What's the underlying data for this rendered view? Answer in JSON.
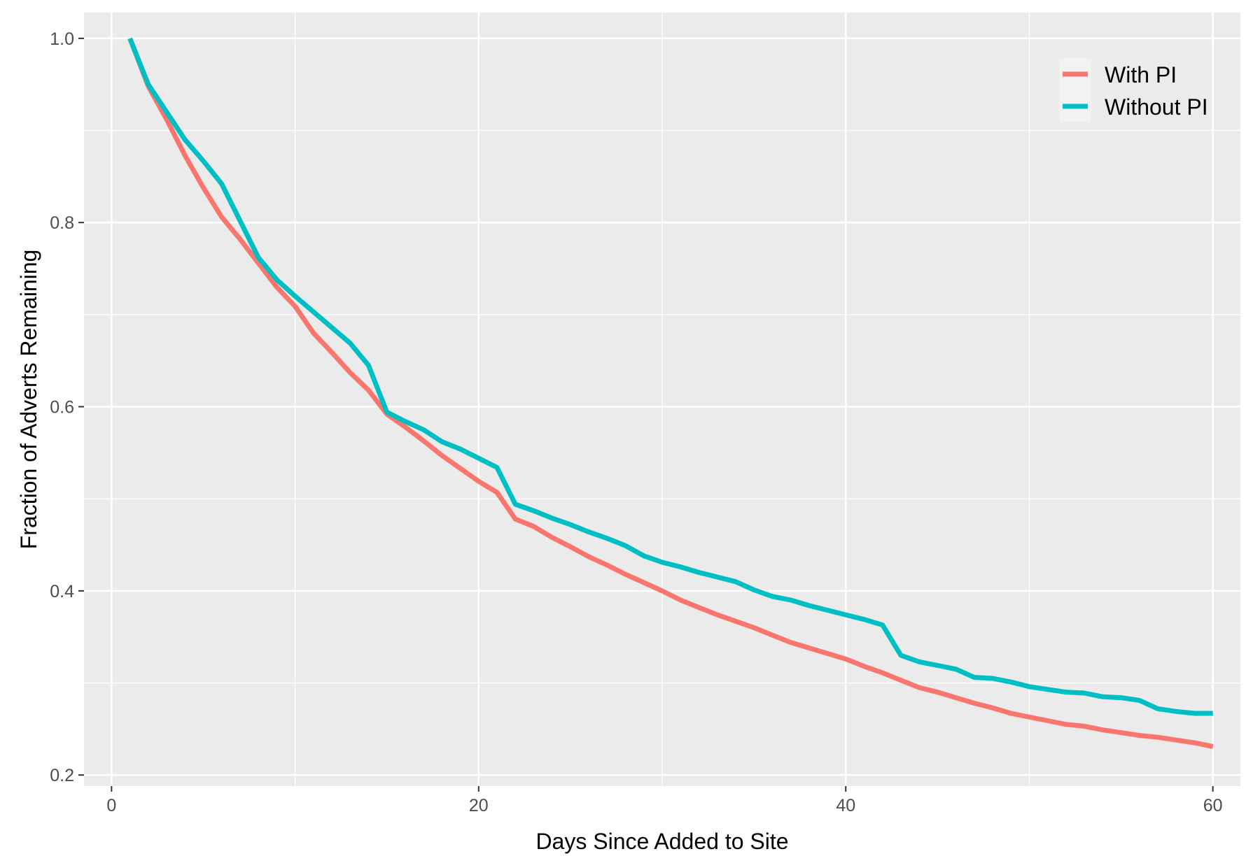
{
  "chart_data": {
    "type": "line",
    "title": "",
    "xlabel": "Days Since Added to Site",
    "ylabel": "Fraction of Adverts Remaining",
    "xlim": [
      -1.5,
      61.5
    ],
    "ylim": [
      0.188,
      1.028
    ],
    "x_ticks": [
      "0",
      "20",
      "40",
      "60"
    ],
    "y_ticks": [
      "0.2",
      "0.4",
      "0.6",
      "0.8",
      "1.0"
    ],
    "x_tick_values": [
      0,
      20,
      40,
      60
    ],
    "y_tick_values": [
      0.2,
      0.4,
      0.6,
      0.8,
      1.0
    ],
    "x_minor_values": [
      10,
      30,
      50
    ],
    "y_minor_values": [
      0.3,
      0.5,
      0.7,
      0.9
    ],
    "grid": true,
    "panel_background": "#ebebeb",
    "legend_position": "top-right",
    "x": [
      1,
      2,
      3,
      4,
      5,
      6,
      7,
      8,
      9,
      10,
      11,
      12,
      13,
      14,
      15,
      16,
      17,
      18,
      19,
      20,
      21,
      22,
      23,
      24,
      25,
      26,
      27,
      28,
      29,
      30,
      31,
      32,
      33,
      34,
      35,
      36,
      37,
      38,
      39,
      40,
      41,
      42,
      43,
      44,
      45,
      46,
      47,
      48,
      49,
      50,
      51,
      52,
      53,
      54,
      55,
      56,
      57,
      58,
      59,
      60
    ],
    "series": [
      {
        "name": "With PI",
        "color": "#f8766d",
        "values": [
          1.0,
          0.948,
          0.912,
          0.873,
          0.838,
          0.806,
          0.782,
          0.756,
          0.73,
          0.709,
          0.68,
          0.659,
          0.637,
          0.618,
          0.592,
          0.578,
          0.563,
          0.547,
          0.533,
          0.519,
          0.507,
          0.478,
          0.47,
          0.458,
          0.448,
          0.437,
          0.428,
          0.418,
          0.409,
          0.4,
          0.39,
          0.382,
          0.374,
          0.367,
          0.36,
          0.352,
          0.344,
          0.338,
          0.332,
          0.326,
          0.318,
          0.311,
          0.303,
          0.295,
          0.29,
          0.284,
          0.278,
          0.273,
          0.267,
          0.263,
          0.259,
          0.255,
          0.253,
          0.249,
          0.246,
          0.243,
          0.241,
          0.238,
          0.235,
          0.231
        ]
      },
      {
        "name": "Without PI",
        "color": "#00bfc4",
        "values": [
          1.0,
          0.95,
          0.92,
          0.89,
          0.867,
          0.842,
          0.802,
          0.762,
          0.738,
          0.72,
          0.703,
          0.686,
          0.669,
          0.645,
          0.594,
          0.584,
          0.575,
          0.562,
          0.554,
          0.544,
          0.534,
          0.494,
          0.487,
          0.479,
          0.472,
          0.464,
          0.457,
          0.449,
          0.438,
          0.431,
          0.426,
          0.42,
          0.415,
          0.41,
          0.401,
          0.394,
          0.39,
          0.384,
          0.379,
          0.374,
          0.369,
          0.363,
          0.33,
          0.323,
          0.319,
          0.315,
          0.306,
          0.305,
          0.301,
          0.296,
          0.293,
          0.29,
          0.289,
          0.285,
          0.284,
          0.281,
          0.272,
          0.269,
          0.267,
          0.267
        ]
      }
    ]
  }
}
